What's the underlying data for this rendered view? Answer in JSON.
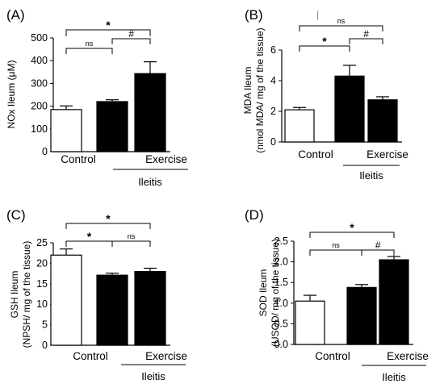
{
  "chart_data": [
    {
      "type": "bar",
      "panel": "(A)",
      "ylabel": "NOx Ileum (μM)",
      "ylim": [
        0,
        500
      ],
      "yticks": [
        "0",
        "100",
        "200",
        "300",
        "400",
        "500"
      ],
      "categories": [
        "Control",
        "",
        "Exercise"
      ],
      "group_label": "Ileitis",
      "values": [
        185,
        220,
        343
      ],
      "errors": [
        16,
        8,
        52
      ],
      "bar_colors": [
        "#ffffff",
        "#000000",
        "#000000"
      ],
      "comparisons": [
        {
          "from": 0,
          "to": 2,
          "label": "*"
        },
        {
          "from": 0,
          "to": 1,
          "label": "ns"
        },
        {
          "from": 1,
          "to": 2,
          "label": "#"
        }
      ]
    },
    {
      "type": "bar",
      "panel": "(B)",
      "ylabel": "MDA Ileum",
      "ylabel2": "(nmol MDA/ mg of the tissue)",
      "ylim": [
        0,
        6
      ],
      "yticks": [
        "0",
        "2",
        "4",
        "6"
      ],
      "categories": [
        "Control",
        "",
        "Exercise"
      ],
      "group_label": "Ileitis",
      "values": [
        2.1,
        4.3,
        2.75
      ],
      "errors": [
        0.15,
        0.7,
        0.2
      ],
      "bar_colors": [
        "#ffffff",
        "#000000",
        "#000000"
      ],
      "comparisons": [
        {
          "from": 0,
          "to": 2,
          "label": "ns"
        },
        {
          "from": 0,
          "to": 1,
          "label": "*"
        },
        {
          "from": 1,
          "to": 2,
          "label": "#"
        }
      ]
    },
    {
      "type": "bar",
      "panel": "(C)",
      "ylabel": "GSH Ileum",
      "ylabel2": "(NPSH/ mg of the tissue)",
      "ylim": [
        0,
        25
      ],
      "yticks": [
        "0",
        "5",
        "10",
        "15",
        "20",
        "25"
      ],
      "categories": [
        "Control",
        "",
        "Exercise"
      ],
      "group_label": "Ileitis",
      "values": [
        22,
        17.1,
        18
      ],
      "errors": [
        1.5,
        0.5,
        0.8
      ],
      "bar_colors": [
        "#ffffff",
        "#000000",
        "#000000"
      ],
      "comparisons": [
        {
          "from": 0,
          "to": 2,
          "label": "*"
        },
        {
          "from": 0,
          "to": 1,
          "label": "*"
        },
        {
          "from": 1,
          "to": 2,
          "label": "ns"
        }
      ]
    },
    {
      "type": "bar",
      "panel": "(D)",
      "ylabel": "SOD Ileum",
      "ylabel2": "(USOD/ mg of the tissue)",
      "ylim": [
        0,
        2.5
      ],
      "yticks": [
        "0.0",
        "0.5",
        "1.0",
        "1.5",
        "2.0",
        "2.5"
      ],
      "categories": [
        "Control",
        "",
        "Exercise"
      ],
      "group_label": "Ileitis",
      "values": [
        1.05,
        1.38,
        2.05
      ],
      "errors": [
        0.14,
        0.07,
        0.08
      ],
      "bar_colors": [
        "#ffffff",
        "#000000",
        "#000000"
      ],
      "comparisons": [
        {
          "from": 0,
          "to": 2,
          "label": "*"
        },
        {
          "from": 0,
          "to": 1,
          "label": "ns"
        },
        {
          "from": 1,
          "to": 2,
          "label": "#"
        }
      ]
    }
  ],
  "stray_mark": "|"
}
